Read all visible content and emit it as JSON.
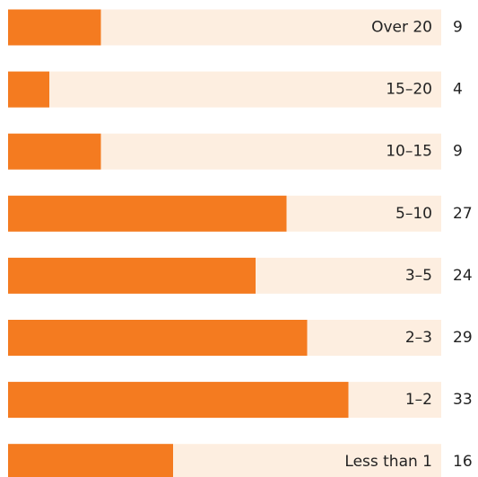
{
  "chart_data": {
    "type": "bar",
    "orientation": "horizontal",
    "categories": [
      "Over 20",
      "15–20",
      "10–15",
      "5–10",
      "3–5",
      "2–3",
      "1–2",
      "Less than 1"
    ],
    "values": [
      9,
      4,
      9,
      27,
      24,
      29,
      33,
      16
    ],
    "color": "#f47b20",
    "track_color": "#fdeee0",
    "xlim": [
      0,
      42
    ]
  }
}
